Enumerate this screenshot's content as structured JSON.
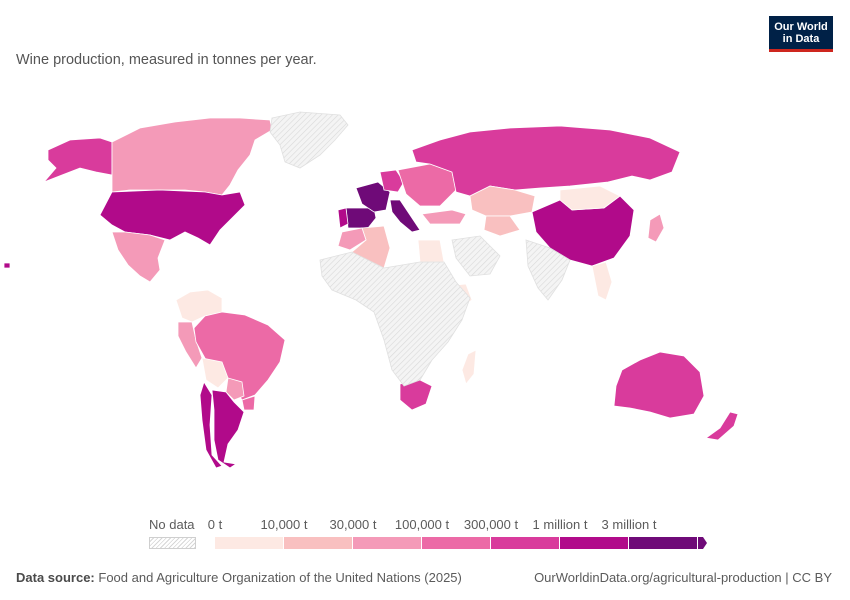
{
  "header": {
    "subtitle": "Wine production, measured in tonnes per year.",
    "logo_line1": "Our World",
    "logo_line2": "in Data"
  },
  "legend": {
    "no_data_label": "No data",
    "bins": [
      {
        "label": "0 t",
        "color": "#fde9e3"
      },
      {
        "label": "10,000 t",
        "color": "#f9c0c0"
      },
      {
        "label": "30,000 t",
        "color": "#f49ab8"
      },
      {
        "label": "100,000 t",
        "color": "#ec6aa6"
      },
      {
        "label": "300,000 t",
        "color": "#d93b9c"
      },
      {
        "label": "1 million t",
        "color": "#b10a8a"
      },
      {
        "label": "3 million t",
        "color": "#6f0a78"
      }
    ]
  },
  "footer": {
    "source_prefix": "Data source:",
    "source_text": "Food and Agriculture Organization of the United Nations (2025)",
    "url": "OurWorldinData.org/agricultural-production | CC BY"
  },
  "colors": {
    "no_data": "#ececec",
    "country_border": "#ffffff"
  },
  "chart_data": {
    "type": "choropleth",
    "title": "",
    "unit": "tonnes per year",
    "legend_placement": "bottom",
    "bins": [
      "0 t",
      "10,000 t",
      "30,000 t",
      "100,000 t",
      "300,000 t",
      "1 million t",
      "3 million t"
    ],
    "regions": [
      {
        "name": "Alaska",
        "bin": 4
      },
      {
        "name": "Canada",
        "bin": 2
      },
      {
        "name": "United States",
        "bin": 5
      },
      {
        "name": "Mexico",
        "bin": 2
      },
      {
        "name": "Greenland",
        "bin": -1
      },
      {
        "name": "Colombia / Venezuela",
        "bin": 0
      },
      {
        "name": "Peru",
        "bin": 2
      },
      {
        "name": "Brazil",
        "bin": 3
      },
      {
        "name": "Bolivia",
        "bin": 0
      },
      {
        "name": "Paraguay",
        "bin": 2
      },
      {
        "name": "Chile",
        "bin": 5
      },
      {
        "name": "Argentina",
        "bin": 5
      },
      {
        "name": "Uruguay",
        "bin": 3
      },
      {
        "name": "Spain",
        "bin": 6
      },
      {
        "name": "France",
        "bin": 6
      },
      {
        "name": "Italy",
        "bin": 6
      },
      {
        "name": "Portugal",
        "bin": 5
      },
      {
        "name": "Germany",
        "bin": 4
      },
      {
        "name": "Eastern Europe",
        "bin": 3
      },
      {
        "name": "Russia",
        "bin": 4
      },
      {
        "name": "Kazakhstan",
        "bin": 1
      },
      {
        "name": "Central Asia",
        "bin": 1
      },
      {
        "name": "Turkey",
        "bin": 2
      },
      {
        "name": "China",
        "bin": 5
      },
      {
        "name": "Mongolia",
        "bin": 0
      },
      {
        "name": "Japan",
        "bin": 2
      },
      {
        "name": "Algeria",
        "bin": 1
      },
      {
        "name": "Morocco",
        "bin": 2
      },
      {
        "name": "Egypt",
        "bin": 0
      },
      {
        "name": "Ethiopia",
        "bin": 0
      },
      {
        "name": "Madagascar",
        "bin": 0
      },
      {
        "name": "South Africa",
        "bin": 4
      },
      {
        "name": "Australia",
        "bin": 4
      },
      {
        "name": "New Zealand",
        "bin": 4
      },
      {
        "name": "Hawaii",
        "bin": 5
      },
      {
        "name": "Southeast Asia",
        "bin": 0
      },
      {
        "name": "Sub-Saharan Africa",
        "bin": -1
      },
      {
        "name": "Arabian Peninsula",
        "bin": -1
      },
      {
        "name": "India",
        "bin": -1
      }
    ]
  }
}
